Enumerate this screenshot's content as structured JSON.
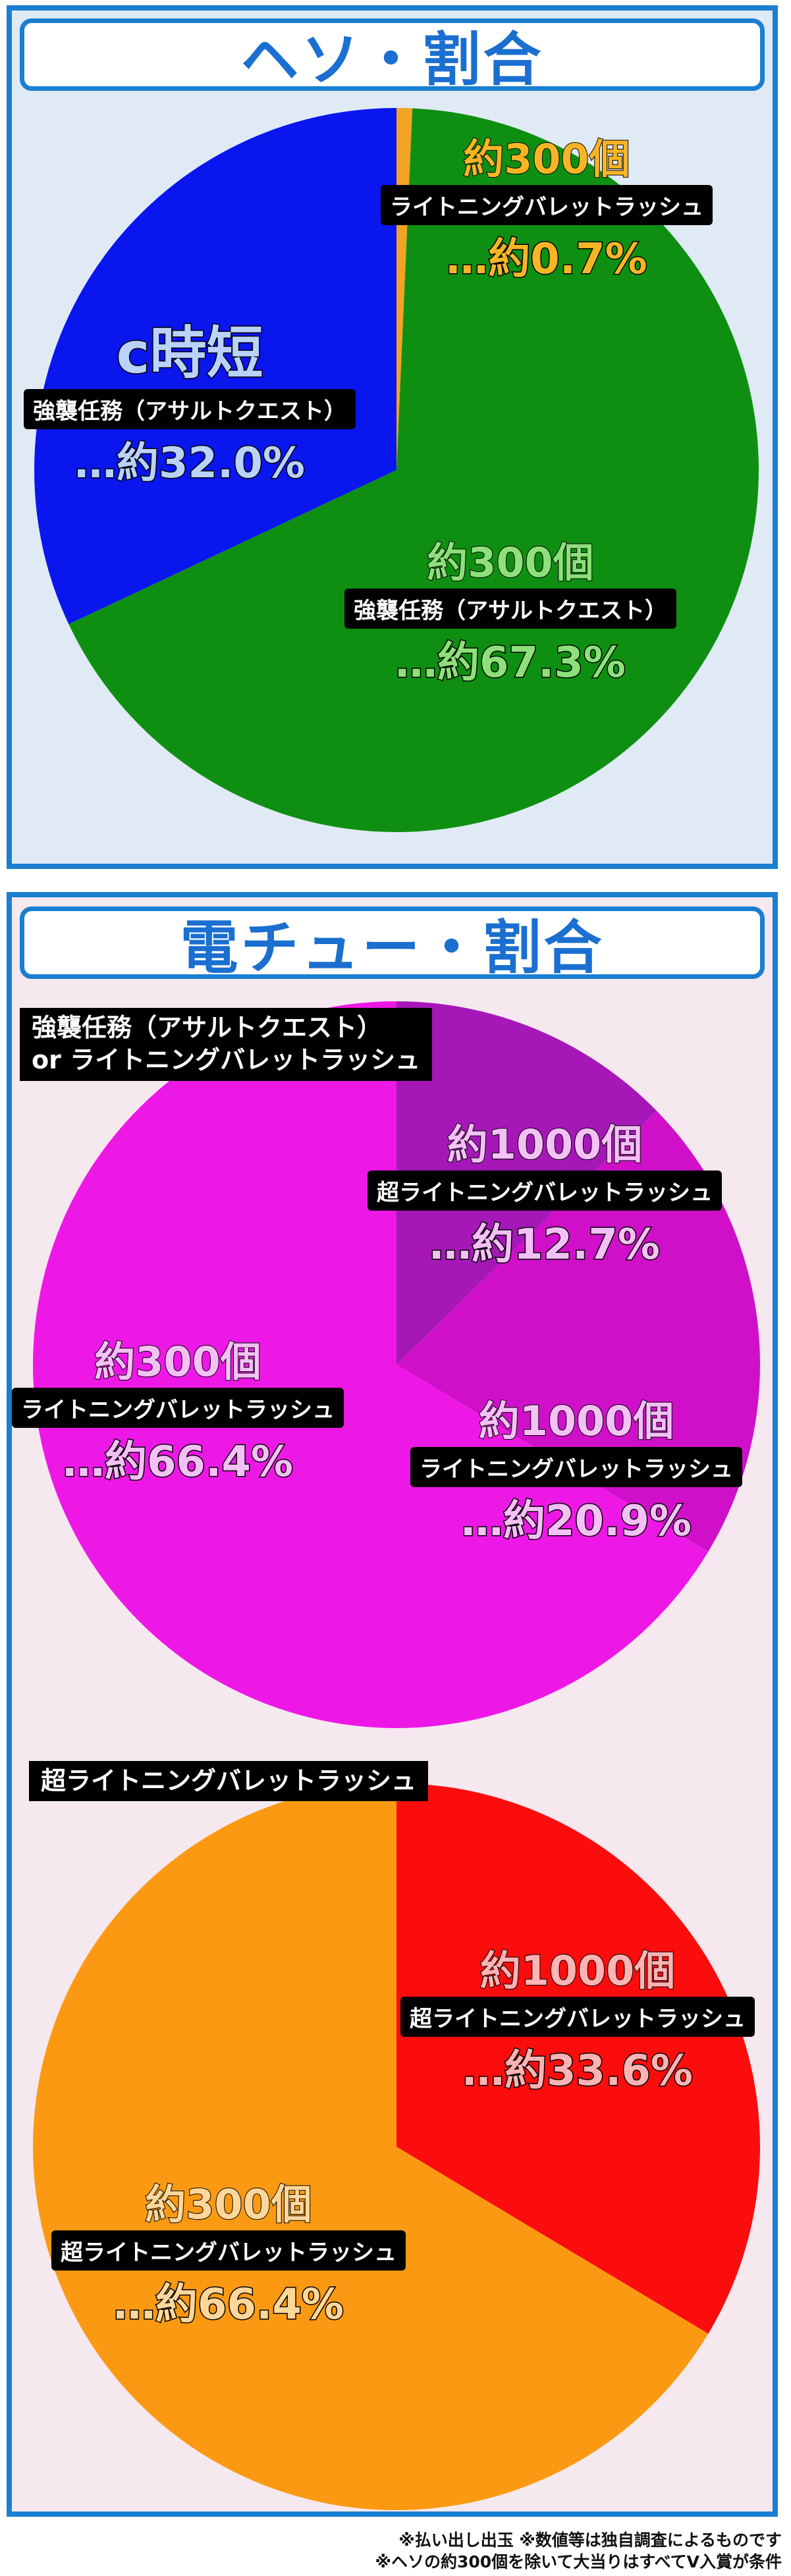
{
  "panels": {
    "heso": {
      "title": "ヘソ・割合"
    },
    "denchu": {
      "title": "電チュー・割合"
    }
  },
  "chart_data": [
    {
      "type": "pie",
      "title": "ヘソ・割合",
      "slices": [
        {
          "count": "約300個",
          "name": "ライトニングバレットラッシュ",
          "pct": "…約0.7%",
          "value": 0.7,
          "color": "#f2a324"
        },
        {
          "count": "約300個",
          "name": "強襲任務（アサルトクエスト）",
          "pct": "…約67.3%",
          "value": 67.3,
          "color": "#0f8f12"
        },
        {
          "count": "c時短",
          "name": "強襲任務（アサルトクエスト）",
          "pct": "…約32.0%",
          "value": 32.0,
          "color": "#0a16ee"
        }
      ]
    },
    {
      "type": "pie",
      "caption_line1": "強襲任務（アサルトクエスト）",
      "caption_line2": "or ライトニングバレットラッシュ",
      "slices": [
        {
          "count": "約1000個",
          "name": "超ライトニングバレットラッシュ",
          "pct": "…約12.7%",
          "value": 12.7,
          "color": "#a617b8"
        },
        {
          "count": "約1000個",
          "name": "ライトニングバレットラッシュ",
          "pct": "…約20.9%",
          "value": 20.9,
          "color": "#cf10c8"
        },
        {
          "count": "約300個",
          "name": "ライトニングバレットラッシュ",
          "pct": "…約66.4%",
          "value": 66.4,
          "color": "#ee18e6"
        }
      ]
    },
    {
      "type": "pie",
      "caption": "超ライトニングバレットラッシュ",
      "slices": [
        {
          "count": "約1000個",
          "name": "超ライトニングバレットラッシュ",
          "pct": "…約33.6%",
          "value": 33.6,
          "color": "#fb0d0d"
        },
        {
          "count": "約300個",
          "name": "超ライトニングバレットラッシュ",
          "pct": "…約66.4%",
          "value": 66.4,
          "color": "#fb9a12"
        }
      ]
    }
  ],
  "notes": {
    "line1": "※払い出し出玉 ※数値等は独自調査によるものです",
    "line2": "※ヘソの約300個を除いて大当りはすべてV入賞が条件"
  }
}
